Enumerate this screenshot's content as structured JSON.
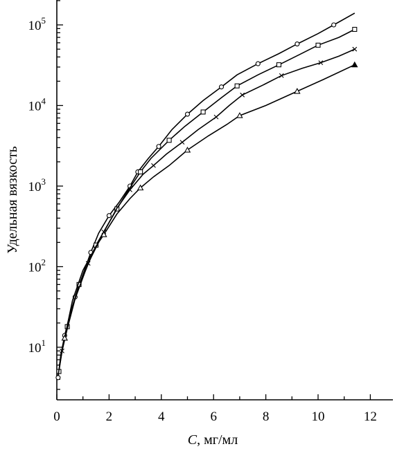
{
  "chart_data": {
    "type": "line",
    "xlabel_var": "C",
    "xlabel_rest": ", мг/мл",
    "ylabel": "Удельная вязкость",
    "xlim": [
      0,
      13
    ],
    "ylim": [
      2.5,
      200000
    ],
    "yscale": "log",
    "x_ticks": [
      0,
      2,
      4,
      6,
      8,
      10,
      12
    ],
    "x_tick_labels": [
      "0",
      "2",
      "4",
      "6",
      "8",
      "10",
      "12"
    ],
    "y_ticks": [
      10,
      100,
      1000,
      10000,
      100000
    ],
    "y_tick_labels": [
      {
        "base": "10",
        "exp": "1"
      },
      {
        "base": "10",
        "exp": "2"
      },
      {
        "base": "10",
        "exp": "3"
      },
      {
        "base": "10",
        "exp": "4"
      },
      {
        "base": "10",
        "exp": "5"
      }
    ],
    "grid": false,
    "series": [
      {
        "marker": "circle",
        "x": [
          0.05,
          0.15,
          0.3,
          0.45,
          0.7,
          1.0,
          1.3,
          1.6,
          2.0,
          2.4,
          2.8,
          3.1,
          3.5,
          3.9,
          4.4,
          5.0,
          5.6,
          6.3,
          6.9,
          7.7,
          8.5,
          9.2,
          10.0,
          10.6,
          11.4
        ],
        "y": [
          4.2,
          8,
          14,
          22,
          42,
          80,
          150,
          260,
          430,
          640,
          1000,
          1500,
          2200,
          3100,
          5000,
          7800,
          11500,
          17000,
          24000,
          33000,
          44000,
          58000,
          78000,
          100000,
          140000
        ],
        "markers_at": [
          0,
          2,
          4,
          6,
          8,
          10,
          11,
          13,
          15,
          17,
          19,
          21,
          23
        ]
      },
      {
        "marker": "square",
        "x": [
          0.08,
          0.2,
          0.4,
          0.55,
          0.85,
          1.1,
          1.5,
          1.9,
          2.3,
          2.7,
          3.2,
          3.6,
          4.3,
          4.9,
          5.6,
          6.3,
          6.9,
          7.7,
          8.5,
          9.3,
          10.0,
          10.8,
          11.4
        ],
        "y": [
          5,
          9,
          18,
          28,
          60,
          90,
          185,
          310,
          520,
          850,
          1500,
          2200,
          3700,
          5500,
          8300,
          12500,
          17500,
          24000,
          32000,
          43000,
          56000,
          70000,
          88000
        ],
        "markers_at": [
          0,
          2,
          4,
          6,
          8,
          10,
          12,
          14,
          16,
          18,
          20,
          22
        ]
      },
      {
        "marker": "cross",
        "x": [
          0.05,
          0.2,
          0.4,
          0.7,
          1.2,
          1.8,
          2.3,
          2.8,
          3.3,
          3.7,
          4.2,
          4.8,
          5.4,
          6.1,
          6.6,
          7.1,
          7.9,
          8.6,
          9.4,
          10.1,
          10.8,
          11.4
        ],
        "y": [
          4.5,
          9,
          17,
          40,
          110,
          270,
          530,
          900,
          1400,
          1800,
          2500,
          3500,
          5000,
          7200,
          10000,
          13500,
          18000,
          23500,
          29000,
          34000,
          41000,
          50000
        ],
        "markers_at": [
          1,
          4,
          5,
          7,
          9,
          11,
          13,
          15,
          17,
          19,
          21
        ]
      },
      {
        "marker": "triangle",
        "x": [
          0.1,
          0.3,
          0.6,
          1.0,
          1.5,
          1.8,
          2.3,
          2.8,
          3.2,
          3.7,
          4.3,
          5.0,
          5.8,
          6.5,
          7.0,
          8.0,
          9.2,
          10.2,
          11.4
        ],
        "y": [
          6,
          13,
          38,
          90,
          180,
          250,
          450,
          700,
          950,
          1300,
          1800,
          2800,
          4200,
          5800,
          7500,
          10000,
          15000,
          21000,
          32000
        ],
        "markers_at": [
          1,
          5,
          8,
          11,
          14,
          16
        ],
        "filled_end": true
      }
    ]
  }
}
